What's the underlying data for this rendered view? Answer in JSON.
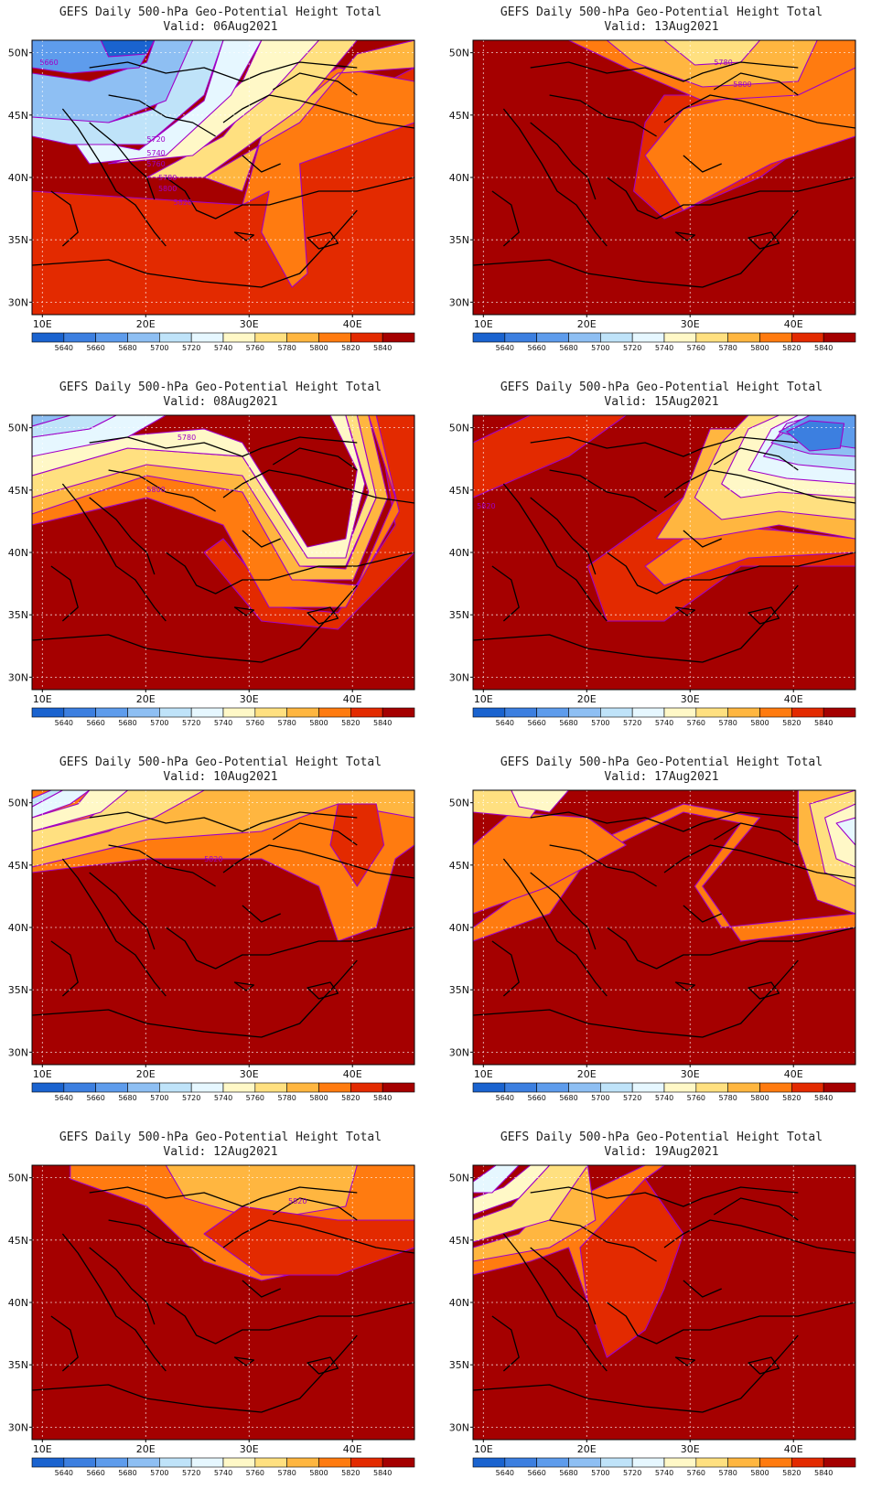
{
  "figure": {
    "panels": [
      {
        "title": "GEFS Daily 500-hPa Geo-Potential Height Total",
        "subtitle": "Valid: 06Aug2021",
        "contour_labels": [
          "5660",
          "5720",
          "5740",
          "5760",
          "5780",
          "5800",
          "5820"
        ]
      },
      {
        "title": "GEFS Daily 500-hPa Geo-Potential Height Total",
        "subtitle": "Valid: 13Aug2021",
        "contour_labels": [
          "5780",
          "5800"
        ]
      },
      {
        "title": "GEFS Daily 500-hPa Geo-Potential Height Total",
        "subtitle": "Valid: 08Aug2021",
        "contour_labels": [
          "5780",
          "5800"
        ]
      },
      {
        "title": "GEFS Daily 500-hPa Geo-Potential Height Total",
        "subtitle": "Valid: 15Aug2021",
        "contour_labels": [
          "5820"
        ]
      },
      {
        "title": "GEFS Daily 500-hPa Geo-Potential Height Total",
        "subtitle": "Valid: 10Aug2021",
        "contour_labels": [
          "5820"
        ]
      },
      {
        "title": "GEFS Daily 500-hPa Geo-Potential Height Total",
        "subtitle": "Valid: 17Aug2021",
        "contour_labels": []
      },
      {
        "title": "GEFS Daily 500-hPa Geo-Potential Height Total",
        "subtitle": "Valid: 12Aug2021",
        "contour_labels": [
          "5820"
        ]
      },
      {
        "title": "GEFS Daily 500-hPa Geo-Potential Height Total",
        "subtitle": "Valid: 19Aug2021",
        "contour_labels": []
      }
    ],
    "map_extent": {
      "lon_min": 9,
      "lon_max": 46,
      "lat_min": 29,
      "lat_max": 51
    },
    "lon_ticks": [
      "10E",
      "20E",
      "30E",
      "40E"
    ],
    "lat_ticks": [
      "30N",
      "35N",
      "40N",
      "45N",
      "50N"
    ],
    "colorbar": {
      "labels": [
        "5640",
        "5660",
        "5680",
        "5700",
        "5720",
        "5740",
        "5760",
        "5780",
        "5800",
        "5820",
        "5840"
      ],
      "colors": [
        "#1a63cf",
        "#3c7fe0",
        "#5e9cec",
        "#8ebff3",
        "#bfe3f9",
        "#e6f7ff",
        "#fff8c7",
        "#ffe080",
        "#ffb640",
        "#ff7b10",
        "#e32a00",
        "#a50000"
      ]
    },
    "contour_color": "#a000c8"
  }
}
